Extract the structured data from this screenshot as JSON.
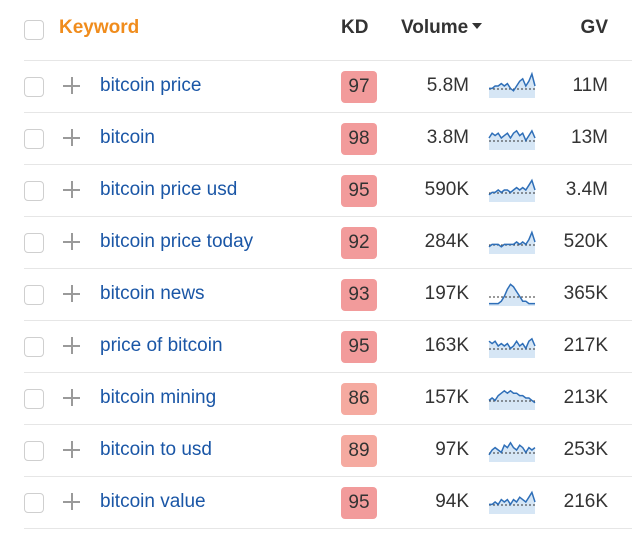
{
  "header": {
    "keyword_label": "Keyword",
    "kd_label": "KD",
    "volume_label": "Volume",
    "gv_label": "GV"
  },
  "colors": {
    "keyword_header": "#f08c1c",
    "link": "#1a56a6",
    "kd_very_hard": "#f29b9b",
    "kd_hard": "#f5aaa0",
    "sparkline_line": "#2f6fb8",
    "sparkline_fill": "#d6e6f5"
  },
  "rows": [
    {
      "keyword": "bitcoin price",
      "kd": "97",
      "volume": "5.8M",
      "gv": "11M",
      "trend": [
        6,
        6,
        5,
        5,
        4,
        5,
        4,
        6,
        7,
        5,
        3,
        2,
        5,
        3,
        0,
        5
      ]
    },
    {
      "keyword": "bitcoin",
      "kd": "98",
      "volume": "3.8M",
      "gv": "13M",
      "trend": [
        5,
        3,
        4,
        3,
        5,
        4,
        3,
        5,
        3,
        2,
        4,
        3,
        6,
        4,
        2,
        5
      ]
    },
    {
      "keyword": "bitcoin price usd",
      "kd": "95",
      "volume": "590K",
      "gv": "3.4M",
      "trend": [
        7,
        6,
        6,
        5,
        6,
        5,
        5,
        6,
        5,
        4,
        5,
        4,
        5,
        3,
        1,
        5
      ]
    },
    {
      "keyword": "bitcoin price today",
      "kd": "92",
      "volume": "284K",
      "gv": "520K",
      "trend": [
        7,
        6,
        6,
        6,
        7,
        6,
        6,
        6,
        6,
        5,
        6,
        5,
        6,
        4,
        1,
        5
      ]
    },
    {
      "keyword": "bitcoin news",
      "kd": "93",
      "volume": "197K",
      "gv": "365K",
      "trend": [
        9,
        9,
        9,
        9,
        8,
        6,
        3,
        1,
        2,
        4,
        6,
        8,
        8,
        9,
        9,
        9
      ]
    },
    {
      "keyword": "price of bitcoin",
      "kd": "95",
      "volume": "163K",
      "gv": "217K",
      "trend": [
        3,
        4,
        3,
        5,
        4,
        5,
        4,
        6,
        5,
        3,
        5,
        4,
        6,
        3,
        2,
        5
      ]
    },
    {
      "keyword": "bitcoin mining",
      "kd": "86",
      "volume": "157K",
      "gv": "213K",
      "trend": [
        6,
        5,
        6,
        4,
        3,
        2,
        3,
        2,
        3,
        3,
        4,
        4,
        5,
        5,
        6,
        7
      ]
    },
    {
      "keyword": "bitcoin to usd",
      "kd": "89",
      "volume": "97K",
      "gv": "253K",
      "trend": [
        7,
        5,
        4,
        5,
        6,
        3,
        4,
        2,
        4,
        5,
        3,
        4,
        6,
        4,
        5,
        4
      ]
    },
    {
      "keyword": "bitcoin value",
      "kd": "95",
      "volume": "94K",
      "gv": "216K",
      "trend": [
        6,
        6,
        5,
        6,
        4,
        5,
        4,
        6,
        4,
        5,
        3,
        4,
        5,
        3,
        1,
        5
      ]
    }
  ]
}
